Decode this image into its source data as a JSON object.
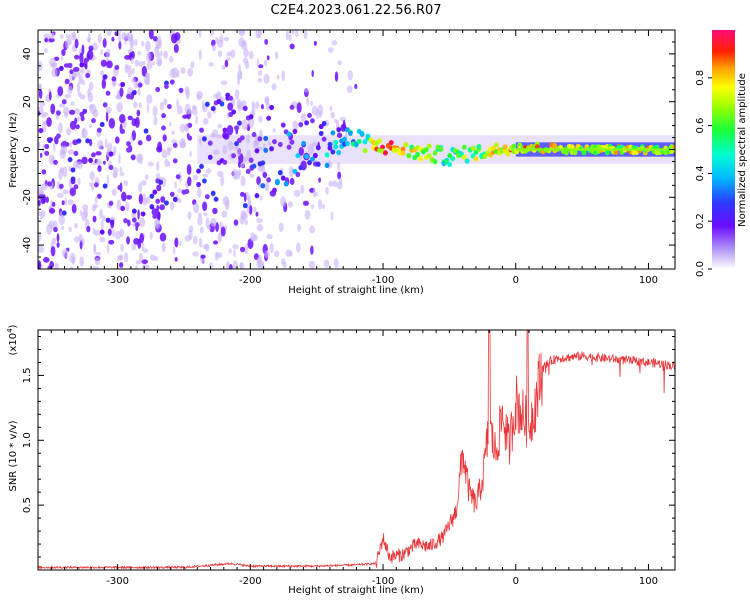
{
  "title": "C2E4.2023.061.22.56.R07",
  "colors": {
    "snr_line": "#e8373a",
    "axis": "#000000"
  },
  "chart_data": [
    {
      "type": "heatmap",
      "xlabel": "Height of straight line (km)",
      "ylabel": "Frequency (Hz)",
      "xlim": [
        -360,
        120
      ],
      "ylim": [
        -50,
        50
      ],
      "x_ticks": [
        -300,
        -200,
        -100,
        0,
        100
      ],
      "y_ticks": [
        -40,
        -20,
        0,
        20,
        40
      ],
      "x_tick_labels": [
        "-300",
        "-200",
        "-100",
        "0",
        "100"
      ],
      "y_tick_labels": [
        "-40",
        "-20",
        "0",
        "20",
        "40"
      ],
      "colorbar": {
        "label": "Normalized spectral amplitude",
        "range": [
          0,
          1
        ],
        "ticks": [
          0.0,
          0.2,
          0.4,
          0.6,
          0.8
        ],
        "tick_labels": [
          "0.0",
          "0.2",
          "0.4",
          "0.6",
          "0.8"
        ]
      },
      "description_points": [
        {
          "x": -300,
          "center_hz": 0,
          "spread_hz": 50,
          "amplitude": 0.1
        },
        {
          "x": -200,
          "center_hz": 0,
          "spread_hz": 35,
          "amplitude": 0.12
        },
        {
          "x": -120,
          "center_hz": 4,
          "spread_hz": 6,
          "amplitude": 0.4
        },
        {
          "x": -100,
          "center_hz": 1,
          "spread_hz": 4,
          "amplitude": 0.85
        },
        {
          "x": -50,
          "center_hz": -3,
          "spread_hz": 5,
          "amplitude": 0.5
        },
        {
          "x": 0,
          "center_hz": 1,
          "spread_hz": 3,
          "amplitude": 0.8
        },
        {
          "x": 50,
          "center_hz": 0,
          "spread_hz": 2,
          "amplitude": 0.7
        },
        {
          "x": 120,
          "center_hz": 0,
          "spread_hz": 2,
          "amplitude": 0.7
        }
      ]
    },
    {
      "type": "line",
      "xlabel": "Height of straight line (km)",
      "ylabel": "SNR (10 * v/v)",
      "y_multiplier": "(x10",
      "y_multiplier_exp": "4",
      "y_multiplier_close": ")",
      "xlim": [
        -360,
        120
      ],
      "ylim": [
        0,
        1.85
      ],
      "x_ticks": [
        -300,
        -200,
        -100,
        0,
        100
      ],
      "y_ticks": [
        0.5,
        1.0,
        1.5
      ],
      "x_tick_labels": [
        "-300",
        "-200",
        "-100",
        "0",
        "100"
      ],
      "y_tick_labels": [
        "0.5",
        "1.0",
        "1.5"
      ],
      "series": [
        {
          "name": "SNR",
          "x": [
            -360,
            -250,
            -215,
            -200,
            -150,
            -120,
            -105,
            -100,
            -95,
            -85,
            -75,
            -65,
            -55,
            -45,
            -40,
            -35,
            -30,
            -25,
            -20,
            -15,
            -10,
            -5,
            0,
            5,
            10,
            15,
            20,
            25,
            30,
            40,
            50,
            60,
            70,
            80,
            90,
            100,
            110,
            120
          ],
          "values": [
            0.02,
            0.02,
            0.05,
            0.03,
            0.03,
            0.04,
            0.05,
            0.25,
            0.1,
            0.12,
            0.2,
            0.18,
            0.25,
            0.45,
            0.9,
            0.6,
            0.5,
            0.7,
            1.1,
            0.9,
            1.2,
            0.95,
            1.3,
            1.2,
            1.1,
            1.3,
            1.55,
            1.6,
            1.63,
            1.64,
            1.65,
            1.64,
            1.63,
            1.62,
            1.61,
            1.6,
            1.59,
            1.57
          ]
        }
      ]
    }
  ]
}
